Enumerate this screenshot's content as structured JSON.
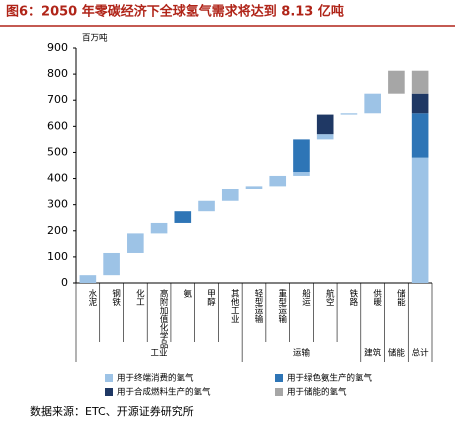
{
  "chart_data": {
    "type": "waterfall",
    "title": "图6：2050 年零碳经济下全球氢气需求将达到 8.13 亿吨",
    "y_label": "百万吨",
    "category_groups": [
      {
        "name": "工业",
        "categories": [
          "水泥",
          "钢铁",
          "化工",
          "高附加值化学品",
          "氨",
          "甲醇",
          "其他工业"
        ]
      },
      {
        "name": "运输",
        "categories": [
          "轻型运输",
          "重型运输",
          "船运",
          "航空",
          "铁路"
        ]
      },
      {
        "name": "建筑",
        "categories": [
          "供暖"
        ]
      },
      {
        "name": "储能",
        "categories": [
          "储能"
        ]
      },
      {
        "name": "总计",
        "categories": [
          null
        ]
      }
    ],
    "series": [
      {
        "name": "用于终端消费的氢气",
        "color": "#9dc3e6",
        "values": [
          30,
          85,
          75,
          40,
          null,
          40,
          45,
          10,
          40,
          15,
          20,
          5,
          75,
          null,
          480
        ]
      },
      {
        "name": "用于绿色氨生产的氢气",
        "color": "#2e75b6",
        "values": [
          null,
          null,
          null,
          null,
          45,
          null,
          null,
          null,
          null,
          125,
          null,
          null,
          null,
          null,
          170
        ]
      },
      {
        "name": "用于合成燃料生产的氢气",
        "color": "#1f3864",
        "values": [
          null,
          null,
          null,
          null,
          null,
          null,
          null,
          null,
          null,
          null,
          75,
          null,
          null,
          null,
          75
        ]
      },
      {
        "name": "用于储能的氢气",
        "color": "#a6a6a6",
        "values": [
          null,
          null,
          null,
          null,
          null,
          null,
          null,
          null,
          null,
          null,
          null,
          null,
          null,
          88,
          88
        ]
      }
    ],
    "ylim": [
      0,
      900
    ],
    "yticks": [
      0,
      100,
      200,
      300,
      400,
      500,
      600,
      700,
      800,
      900
    ],
    "source": "数据来源：ETC、开源证券研究所"
  }
}
